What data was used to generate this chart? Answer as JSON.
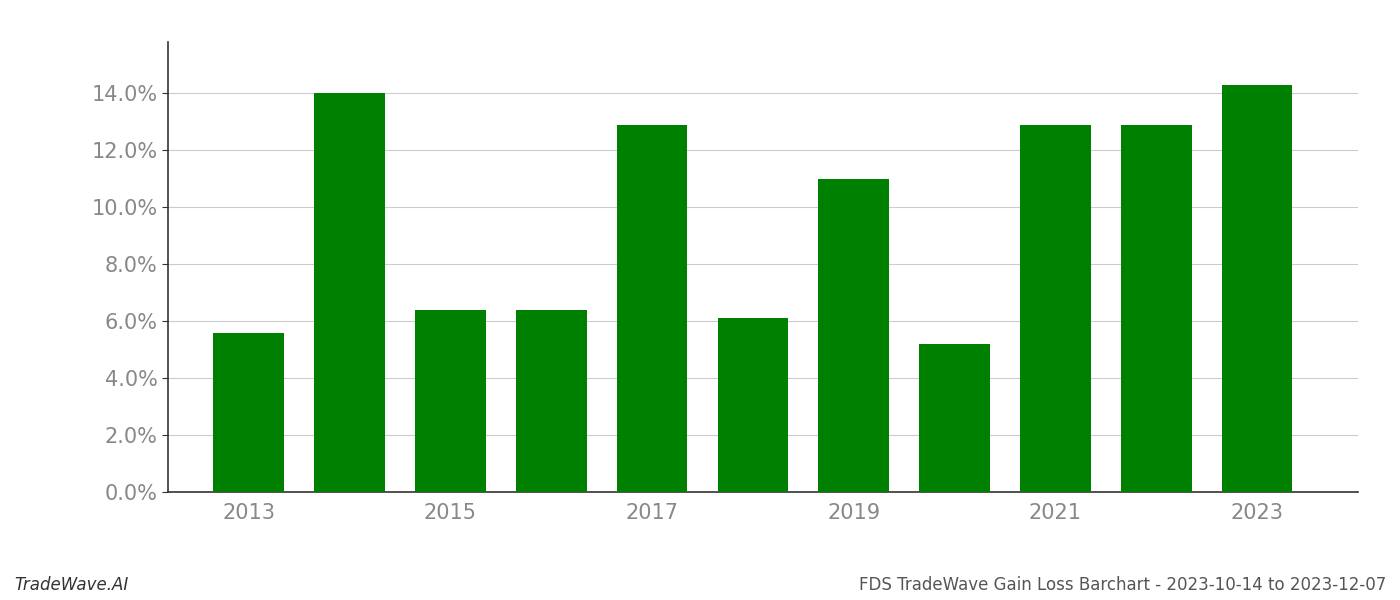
{
  "years": [
    2013,
    2014,
    2015,
    2016,
    2017,
    2018,
    2019,
    2020,
    2021,
    2022,
    2023
  ],
  "values": [
    0.056,
    0.14,
    0.064,
    0.064,
    0.129,
    0.061,
    0.11,
    0.052,
    0.129,
    0.129,
    0.143
  ],
  "bar_color": "#008000",
  "background_color": "#ffffff",
  "grid_color": "#cccccc",
  "ytick_labels": [
    "0.0%",
    "2.0%",
    "4.0%",
    "6.0%",
    "8.0%",
    "10.0%",
    "12.0%",
    "14.0%"
  ],
  "ytick_values": [
    0.0,
    0.02,
    0.04,
    0.06,
    0.08,
    0.1,
    0.12,
    0.14
  ],
  "ylim": [
    0,
    0.158
  ],
  "xlim": [
    2012.2,
    2024.0
  ],
  "xlabel": "",
  "ylabel": "",
  "footer_left": "TradeWave.AI",
  "footer_right": "FDS TradeWave Gain Loss Barchart - 2023-10-14 to 2023-12-07",
  "footer_fontsize": 12,
  "tick_fontsize": 15,
  "bar_width": 0.7,
  "xtick_labels": [
    "2013",
    "2015",
    "2017",
    "2019",
    "2021",
    "2023"
  ],
  "xtick_values": [
    2013,
    2015,
    2017,
    2019,
    2021,
    2023
  ]
}
